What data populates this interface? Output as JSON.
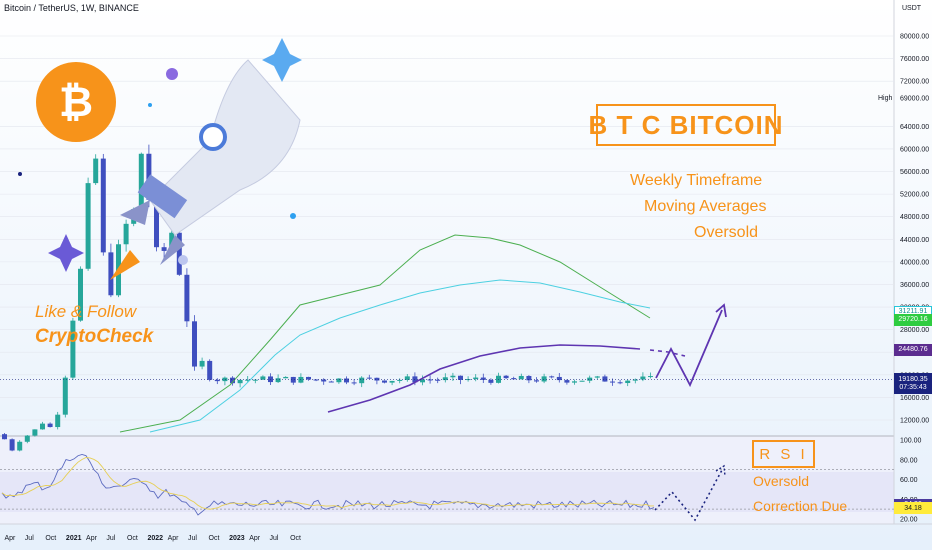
{
  "header": {
    "symbol": "Bitcoin / TetherUS, 1W, BINANCE",
    "currency": "USDT",
    "high_label": "High"
  },
  "annotations": {
    "title": "B T C   BITCOIN",
    "lines": [
      "Weekly Timeframe",
      "Moving Averages",
      "Oversold"
    ],
    "rsi_box": "R S I",
    "rsi_lines": [
      "Oversold",
      "Correction Due"
    ],
    "like": "Like & Follow",
    "brand": "CryptoCheck"
  },
  "price_tags": [
    {
      "value": "31211.91",
      "bg": "#ffffff",
      "fg": "#0d8f8f",
      "border": "#26c6da",
      "price": 31212
    },
    {
      "value": "29720.16",
      "bg": "#2ecc40",
      "fg": "#ffffff",
      "price": 29720
    },
    {
      "value": "24480.76",
      "bg": "#5b2c8f",
      "fg": "#ffffff",
      "price": 24481
    },
    {
      "value": "19180.35",
      "bg": "#1a237e",
      "fg": "#ffffff",
      "price": 19180
    },
    {
      "value": "07:35:43",
      "bg": "#1a237e",
      "fg": "#ffffff",
      "price": 17700
    }
  ],
  "rsi_tags": [
    {
      "value": "34.36",
      "bg": "#4a3a9e",
      "fg": "#ffffff",
      "rsi": 34.4
    },
    {
      "value": "34.18",
      "bg": "#ffeb3b",
      "fg": "#131722",
      "rsi": 31.0
    }
  ],
  "colors": {
    "up": "#26a69a",
    "down": "#3f4fbf",
    "ma_green": "#4caf50",
    "ma_teal": "#4dd0e1",
    "ma_purple": "#5e35b1",
    "rsi": "#5c6bc0",
    "rsi_ma": "#e6cf55",
    "accent": "#f7931a"
  },
  "chart_data": {
    "type": "candlestick",
    "xlabels": [
      "Apr",
      "Jul",
      "Oct",
      "2021",
      "Apr",
      "Jul",
      "Oct",
      "2022",
      "Apr",
      "Jul",
      "Oct",
      "2023",
      "Apr",
      "Jul",
      "Oct"
    ],
    "y_ticks": [
      "80000.00",
      "76000.00",
      "72000.00",
      "69000.00",
      "64000.00",
      "60000.00",
      "56000.00",
      "52000.00",
      "48000.00",
      "44000.00",
      "40000.00",
      "36000.00",
      "32000.00",
      "28000.00",
      "24000.00",
      "20000.00",
      "16000.00",
      "12000.00"
    ],
    "y_tick_values": [
      80000,
      76000,
      72000,
      69000,
      64000,
      60000,
      56000,
      52000,
      48000,
      44000,
      40000,
      36000,
      32000,
      28000,
      24000,
      20000,
      16000,
      12000
    ],
    "rsi_ticks": [
      "100.00",
      "80.00",
      "60.00",
      "40.00",
      "20.00"
    ],
    "rsi_tick_values": [
      100,
      80,
      60,
      40,
      20
    ],
    "rsi_levels": [
      70,
      30
    ],
    "close_series": [
      [
        "2020-01",
        8500
      ],
      [
        "2020-02",
        9500
      ],
      [
        "2020-03",
        6500
      ],
      [
        "2020-04",
        7000
      ],
      [
        "2020-05",
        9500
      ],
      [
        "2020-06",
        9200
      ],
      [
        "2020-07",
        10500
      ],
      [
        "2020-08",
        11700
      ],
      [
        "2020-09",
        10700
      ],
      [
        "2020-10",
        12800
      ],
      [
        "2020-11",
        17500
      ],
      [
        "2020-12",
        28800
      ],
      [
        "2021-01",
        33000
      ],
      [
        "2021-02",
        45000
      ],
      [
        "2021-03",
        57000
      ],
      [
        "2021-04",
        58500
      ],
      [
        "2021-05",
        38000
      ],
      [
        "2021-06",
        35000
      ],
      [
        "2021-07",
        41500
      ],
      [
        "2021-08",
        47000
      ],
      [
        "2021-09",
        43800
      ],
      [
        "2021-10",
        61000
      ],
      [
        "2021-11",
        57000
      ],
      [
        "2021-12",
        46200
      ],
      [
        "2022-01",
        38500
      ],
      [
        "2022-02",
        43200
      ],
      [
        "2022-03",
        45500
      ],
      [
        "2022-04",
        38600
      ],
      [
        "2022-05",
        31800
      ],
      [
        "2022-06",
        19900
      ],
      [
        "2022-07",
        23300
      ],
      [
        "2022-08",
        20100
      ],
      [
        "2022-09",
        19400
      ],
      [
        "2022-10",
        19180
      ]
    ],
    "rsi_series": [
      [
        "2020-01",
        52
      ],
      [
        "2020-03",
        38
      ],
      [
        "2020-05",
        50
      ],
      [
        "2020-07",
        55
      ],
      [
        "2020-09",
        52
      ],
      [
        "2020-11",
        72
      ],
      [
        "2021-01",
        86
      ],
      [
        "2021-03",
        82
      ],
      [
        "2021-05",
        55
      ],
      [
        "2021-07",
        53
      ],
      [
        "2021-09",
        56
      ],
      [
        "2021-11",
        61
      ],
      [
        "2022-01",
        44
      ],
      [
        "2022-03",
        47
      ],
      [
        "2022-05",
        34
      ],
      [
        "2022-07",
        28
      ],
      [
        "2022-09",
        34
      ],
      [
        "2022-10",
        34.36
      ]
    ],
    "moving_averages": [
      {
        "label": "29720.16",
        "color": "#4caf50"
      },
      {
        "label": "31211.91",
        "color": "#4dd0e1"
      },
      {
        "label": "24480.76",
        "color": "#5e35b1"
      }
    ]
  }
}
